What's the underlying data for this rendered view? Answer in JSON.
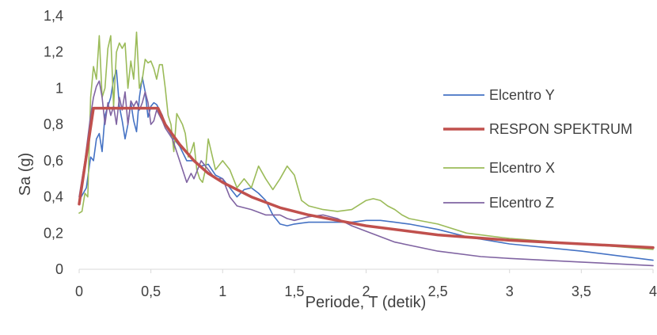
{
  "chart_data": {
    "type": "line",
    "title": "",
    "xlabel": "Periode, T (detik)",
    "ylabel": "Sa (g)",
    "xlim": [
      0,
      4
    ],
    "ylim": [
      0,
      1.4
    ],
    "x_ticks": [
      "0",
      "0,5",
      "1",
      "1,5",
      "2",
      "2,5",
      "3",
      "3,5",
      "4"
    ],
    "y_ticks": [
      "0",
      "0,2",
      "0,4",
      "0,6",
      "0,8",
      "1",
      "1,2",
      "1,4"
    ],
    "grid": false,
    "legend_position": "right",
    "series": [
      {
        "name": "Elcentro Y",
        "color": "#4472C4",
        "x": [
          0,
          0.05,
          0.08,
          0.1,
          0.12,
          0.14,
          0.16,
          0.18,
          0.2,
          0.22,
          0.24,
          0.26,
          0.28,
          0.3,
          0.32,
          0.34,
          0.36,
          0.38,
          0.4,
          0.42,
          0.44,
          0.46,
          0.48,
          0.5,
          0.52,
          0.54,
          0.56,
          0.58,
          0.6,
          0.65,
          0.7,
          0.75,
          0.8,
          0.85,
          0.9,
          0.95,
          1.0,
          1.05,
          1.1,
          1.15,
          1.2,
          1.25,
          1.3,
          1.35,
          1.4,
          1.45,
          1.5,
          1.6,
          1.7,
          1.8,
          1.9,
          2.0,
          2.1,
          2.2,
          2.3,
          2.5,
          2.7,
          3.0,
          3.5,
          4.0
        ],
        "y": [
          0.38,
          0.45,
          0.62,
          0.6,
          0.72,
          0.75,
          0.65,
          0.85,
          0.9,
          0.95,
          1.05,
          1.1,
          0.9,
          0.82,
          0.72,
          0.8,
          0.92,
          0.82,
          0.76,
          0.95,
          1.06,
          0.98,
          0.84,
          0.9,
          0.92,
          0.91,
          0.88,
          0.85,
          0.8,
          0.73,
          0.68,
          0.6,
          0.6,
          0.57,
          0.58,
          0.52,
          0.5,
          0.45,
          0.4,
          0.44,
          0.45,
          0.42,
          0.38,
          0.3,
          0.25,
          0.24,
          0.25,
          0.26,
          0.26,
          0.26,
          0.26,
          0.27,
          0.27,
          0.26,
          0.25,
          0.22,
          0.18,
          0.14,
          0.1,
          0.05
        ]
      },
      {
        "name": "RESPON SPEKTRUM",
        "color": "#C0504D",
        "x": [
          0,
          0.1,
          0.55,
          0.6,
          0.7,
          0.8,
          0.9,
          1.0,
          1.2,
          1.4,
          1.6,
          1.8,
          2.0,
          2.5,
          3.0,
          3.5,
          4.0
        ],
        "y": [
          0.36,
          0.89,
          0.89,
          0.8,
          0.69,
          0.6,
          0.53,
          0.48,
          0.4,
          0.34,
          0.3,
          0.27,
          0.24,
          0.19,
          0.16,
          0.14,
          0.12
        ]
      },
      {
        "name": "Elcentro X",
        "color": "#9BBB59",
        "x": [
          0,
          0.02,
          0.04,
          0.06,
          0.08,
          0.1,
          0.12,
          0.14,
          0.16,
          0.18,
          0.2,
          0.22,
          0.24,
          0.26,
          0.28,
          0.3,
          0.32,
          0.34,
          0.36,
          0.38,
          0.4,
          0.42,
          0.44,
          0.46,
          0.48,
          0.5,
          0.52,
          0.54,
          0.56,
          0.58,
          0.6,
          0.62,
          0.64,
          0.66,
          0.68,
          0.7,
          0.72,
          0.74,
          0.76,
          0.78,
          0.8,
          0.82,
          0.84,
          0.86,
          0.88,
          0.9,
          0.95,
          1.0,
          1.05,
          1.1,
          1.15,
          1.2,
          1.25,
          1.3,
          1.35,
          1.4,
          1.45,
          1.5,
          1.55,
          1.6,
          1.7,
          1.8,
          1.9,
          2.0,
          2.05,
          2.1,
          2.15,
          2.2,
          2.25,
          2.3,
          2.5,
          2.7,
          3.0,
          3.5,
          4.0
        ],
        "y": [
          0.31,
          0.32,
          0.42,
          0.4,
          0.95,
          1.12,
          1.05,
          1.29,
          0.95,
          1.0,
          1.22,
          1.29,
          0.9,
          1.2,
          1.25,
          1.22,
          1.25,
          1.0,
          1.15,
          1.05,
          1.31,
          1.0,
          1.05,
          1.16,
          1.14,
          1.15,
          1.11,
          1.05,
          1.13,
          1.13,
          1.0,
          0.85,
          0.8,
          0.65,
          0.86,
          0.83,
          0.8,
          0.75,
          0.62,
          0.65,
          0.7,
          0.55,
          0.5,
          0.48,
          0.55,
          0.72,
          0.55,
          0.6,
          0.55,
          0.45,
          0.5,
          0.45,
          0.57,
          0.5,
          0.44,
          0.5,
          0.57,
          0.52,
          0.38,
          0.35,
          0.33,
          0.32,
          0.33,
          0.38,
          0.39,
          0.38,
          0.35,
          0.33,
          0.3,
          0.28,
          0.25,
          0.2,
          0.17,
          0.14,
          0.11
        ]
      },
      {
        "name": "Elcentro Z",
        "color": "#8064A2",
        "x": [
          0,
          0.04,
          0.08,
          0.1,
          0.12,
          0.14,
          0.16,
          0.18,
          0.2,
          0.22,
          0.24,
          0.26,
          0.28,
          0.3,
          0.32,
          0.34,
          0.36,
          0.38,
          0.4,
          0.42,
          0.44,
          0.46,
          0.48,
          0.5,
          0.52,
          0.54,
          0.56,
          0.58,
          0.6,
          0.65,
          0.7,
          0.75,
          0.78,
          0.8,
          0.85,
          0.9,
          0.95,
          1.0,
          1.05,
          1.1,
          1.2,
          1.3,
          1.4,
          1.45,
          1.5,
          1.6,
          1.7,
          1.8,
          1.9,
          2.0,
          2.2,
          2.5,
          2.8,
          3.0,
          3.5,
          4.0
        ],
        "y": [
          0.4,
          0.6,
          0.85,
          0.95,
          1.01,
          1.04,
          0.95,
          0.8,
          0.92,
          0.85,
          0.9,
          0.8,
          0.95,
          0.88,
          0.98,
          0.8,
          0.93,
          0.9,
          0.93,
          0.88,
          0.92,
          0.98,
          0.92,
          0.8,
          0.82,
          0.88,
          0.85,
          0.82,
          0.78,
          0.72,
          0.6,
          0.48,
          0.53,
          0.5,
          0.6,
          0.55,
          0.5,
          0.5,
          0.4,
          0.35,
          0.33,
          0.3,
          0.3,
          0.28,
          0.27,
          0.29,
          0.3,
          0.28,
          0.24,
          0.21,
          0.15,
          0.1,
          0.07,
          0.06,
          0.04,
          0.02
        ]
      }
    ]
  }
}
